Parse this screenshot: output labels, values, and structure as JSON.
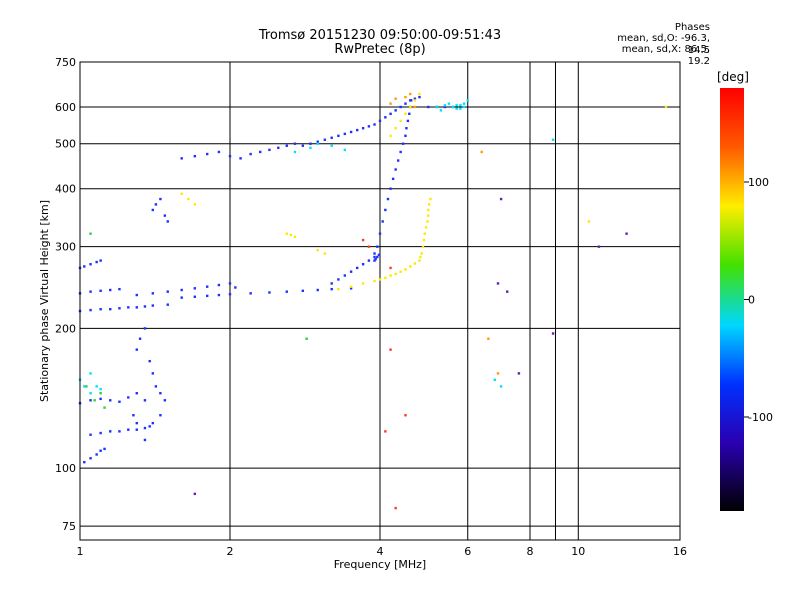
{
  "header": {
    "title": "Tromsø 20151230 09:50:00-09:51:43",
    "subtitle": "RwPretec (8p)",
    "phase_heading": "Phases",
    "phase_o": "mean, sd,O: -96.3, 14.5",
    "phase_x": "mean, sd,X: 86.5, 19.2"
  },
  "chart_data": {
    "type": "scatter",
    "xlabel": "Frequency [MHz]",
    "ylabel": "Stationary phase Virtual Height [km]",
    "x_scale": "log",
    "y_scale": "log",
    "xlim": [
      1,
      16
    ],
    "ylim": [
      70,
      750
    ],
    "x_ticks": [
      1,
      2,
      4,
      6,
      8,
      10,
      16
    ],
    "y_ticks": [
      75,
      100,
      200,
      300,
      400,
      500,
      600,
      750
    ],
    "grid": true,
    "colorbar": {
      "label": "[deg]",
      "range": [
        -180,
        180
      ],
      "ticks": [
        100,
        0,
        -100
      ]
    },
    "series": [
      {
        "color": "#2030ff",
        "x": [
          1.02,
          1.05,
          1.08,
          1.1,
          1.12,
          1.05,
          1.1,
          1.15,
          1.2,
          1.25,
          1.3,
          1.35,
          1.38,
          1.0,
          1.05,
          1.1,
          1.15,
          1.2,
          1.25,
          1.3,
          1.35,
          1.4,
          1.45,
          1.0,
          1.05,
          1.1,
          1.15,
          1.2,
          1.25,
          1.3,
          1.35,
          1.4,
          1.5,
          1.6,
          1.7,
          1.8,
          1.9,
          2.0,
          2.2,
          2.4,
          2.6,
          2.8,
          3.0,
          3.2,
          3.5,
          1.0,
          1.05,
          1.1,
          1.15,
          1.2,
          1.3,
          1.4,
          1.5,
          1.6,
          1.7,
          1.8,
          1.9,
          2.0,
          2.05,
          1.0,
          1.02,
          1.05,
          1.08,
          1.1,
          1.4,
          1.42,
          1.45,
          1.48,
          1.5,
          1.6,
          1.7,
          1.8,
          1.9,
          2.0,
          2.1,
          2.2,
          2.3,
          2.4,
          2.5,
          2.6,
          2.7,
          2.8,
          2.9,
          3.0,
          3.1,
          3.2,
          3.3,
          3.4,
          3.5,
          3.6,
          3.7,
          3.8,
          3.9,
          4.0,
          4.1,
          4.2,
          4.3,
          4.4,
          4.5,
          4.6,
          4.7,
          4.8,
          5.0,
          5.2,
          5.4,
          5.6,
          3.9,
          3.95,
          4.0,
          4.05,
          4.1,
          4.15,
          4.2,
          4.25,
          4.3,
          4.35,
          4.4,
          4.45,
          4.5,
          4.52,
          4.55,
          4.58,
          4.6,
          4.62,
          3.9,
          3.92,
          3.95,
          3.98,
          3.2,
          3.3,
          3.4,
          3.5,
          3.6,
          3.7,
          3.8,
          3.9,
          1.3,
          1.32,
          1.35,
          1.38,
          1.4,
          1.42,
          1.45,
          1.48,
          1.28,
          1.3,
          1.35
        ],
        "y": [
          103,
          105,
          107,
          109,
          110,
          118,
          119,
          120,
          120,
          121,
          121,
          122,
          123,
          138,
          140,
          141,
          140,
          139,
          142,
          145,
          140,
          125,
          130,
          218,
          219,
          220,
          220,
          221,
          222,
          222,
          223,
          224,
          225,
          233,
          234,
          235,
          236,
          237,
          238,
          239,
          240,
          241,
          242,
          243,
          244,
          238,
          240,
          241,
          242,
          243,
          236,
          238,
          240,
          242,
          244,
          246,
          248,
          250,
          245,
          270,
          272,
          275,
          278,
          280,
          360,
          370,
          380,
          350,
          340,
          465,
          470,
          475,
          480,
          470,
          465,
          475,
          480,
          485,
          490,
          495,
          500,
          495,
          500,
          505,
          510,
          515,
          520,
          525,
          530,
          535,
          540,
          545,
          550,
          560,
          570,
          580,
          590,
          600,
          610,
          620,
          625,
          630,
          600,
          600,
          600,
          600,
          290,
          300,
          320,
          340,
          360,
          380,
          400,
          420,
          440,
          460,
          480,
          500,
          520,
          540,
          560,
          580,
          600,
          620,
          280,
          282,
          285,
          288,
          250,
          255,
          260,
          265,
          270,
          275,
          280,
          285,
          180,
          190,
          200,
          170,
          160,
          150,
          145,
          140,
          130,
          125,
          115
        ]
      },
      {
        "color": "#ffe800",
        "x": [
          3.3,
          3.5,
          3.7,
          3.9,
          4.0,
          4.1,
          4.2,
          4.3,
          4.4,
          4.5,
          4.6,
          4.7,
          4.8,
          4.82,
          4.85,
          4.88,
          4.9,
          4.92,
          4.95,
          4.98,
          5.0,
          5.0,
          5.02,
          5.05,
          4.2,
          4.3,
          4.4,
          4.5,
          4.6,
          4.7,
          4.8,
          2.6,
          2.65,
          2.7,
          3.0,
          3.1,
          1.6,
          1.65,
          1.7,
          10.5,
          15.0
        ],
        "y": [
          243,
          246,
          250,
          253,
          255,
          257,
          260,
          262,
          265,
          268,
          272,
          276,
          280,
          285,
          290,
          300,
          310,
          320,
          330,
          340,
          350,
          360,
          370,
          380,
          520,
          540,
          560,
          580,
          600,
          620,
          640,
          320,
          318,
          315,
          295,
          290,
          390,
          380,
          370,
          340,
          600
        ]
      },
      {
        "color": "#00e0ff",
        "x": [
          5.2,
          5.3,
          5.4,
          5.5,
          5.6,
          5.7,
          5.8,
          5.9,
          6.0,
          5.9,
          5.8,
          5.7,
          1.05,
          1.08,
          1.1,
          1.05,
          1.0,
          1.02,
          2.7,
          2.9,
          3.0,
          3.2,
          3.4,
          6.8,
          7.0,
          8.9
        ],
        "y": [
          600,
          590,
          605,
          610,
          600,
          595,
          605,
          600,
          620,
          610,
          595,
          605,
          145,
          150,
          148,
          160,
          155,
          150,
          480,
          490,
          500,
          495,
          485,
          155,
          150,
          510
        ]
      },
      {
        "color": "#ff3a20",
        "x": [
          4.2,
          4.5,
          4.2,
          4.1,
          4.3,
          3.8,
          3.7
        ],
        "y": [
          180,
          130,
          270,
          120,
          82,
          300,
          310
        ]
      },
      {
        "color": "#30d040",
        "x": [
          1.07,
          1.1,
          1.12,
          2.85,
          1.03,
          1.05
        ],
        "y": [
          140,
          145,
          135,
          190,
          150,
          320
        ]
      },
      {
        "color": "#ff9d00",
        "x": [
          4.2,
          4.3,
          4.5,
          4.6,
          4.7,
          6.4,
          6.9,
          6.6
        ],
        "y": [
          610,
          625,
          630,
          640,
          600,
          480,
          160,
          190
        ]
      },
      {
        "color": "#6020b0",
        "x": [
          1.7,
          7.2,
          7.0,
          7.6,
          8.9,
          12.5,
          11.0,
          6.9
        ],
        "y": [
          88,
          240,
          380,
          160,
          195,
          320,
          300,
          250
        ]
      }
    ]
  }
}
